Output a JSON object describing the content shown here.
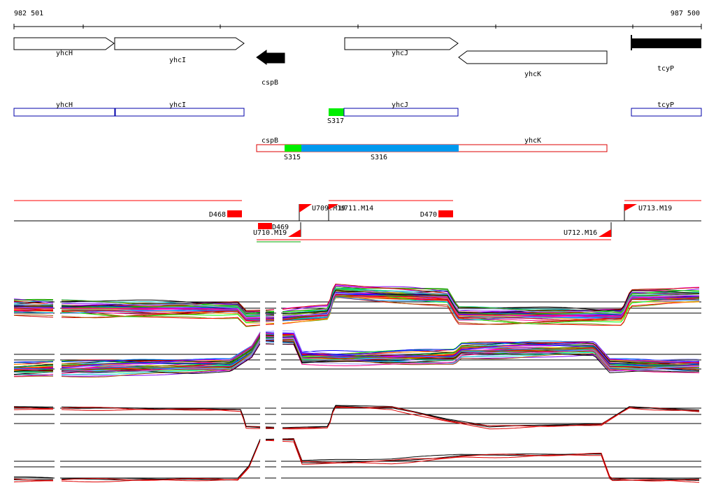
{
  "ruler": {
    "start_label": "982 501",
    "end_label": "987 500"
  },
  "genes": [
    {
      "label": "yhcH",
      "strand": "+",
      "fill": "white"
    },
    {
      "label": "yhcI",
      "strand": "+",
      "fill": "white"
    },
    {
      "label": "cspB",
      "strand": "-",
      "fill": "black"
    },
    {
      "label": "yhcJ",
      "strand": "+",
      "fill": "white"
    },
    {
      "label": "yhcK",
      "strand": "-",
      "fill": "white"
    },
    {
      "label": "tcyP",
      "strand": "+",
      "fill": "black"
    }
  ],
  "transcripts_upper": [
    {
      "label": "yhcH"
    },
    {
      "label": "yhcI"
    },
    {
      "label": "yhcJ"
    },
    {
      "label": "tcyP"
    }
  ],
  "segments_upper": [
    {
      "label": "S317",
      "color": "#00ee00"
    }
  ],
  "transcripts_lower": [
    {
      "label": "cspB"
    },
    {
      "label": "yhcK"
    }
  ],
  "segments_lower": [
    {
      "label": "S315",
      "color": "#00ee00"
    },
    {
      "label": "S316",
      "color": "#0099ee"
    }
  ],
  "features": [
    {
      "label": "D468"
    },
    {
      "label": "D469"
    },
    {
      "label": "D470"
    },
    {
      "label": "U709.M19"
    },
    {
      "label": "U710.M19"
    },
    {
      "label": "U711.M14"
    },
    {
      "label": "U712.M16"
    },
    {
      "label": "U713.M19"
    }
  ],
  "colors": {
    "upper_transcript": "#0000aa",
    "lower_transcript": "#dd0000",
    "feature": "#ff0000",
    "highlight_green": "#00ee00",
    "highlight_blue": "#0099ee"
  }
}
